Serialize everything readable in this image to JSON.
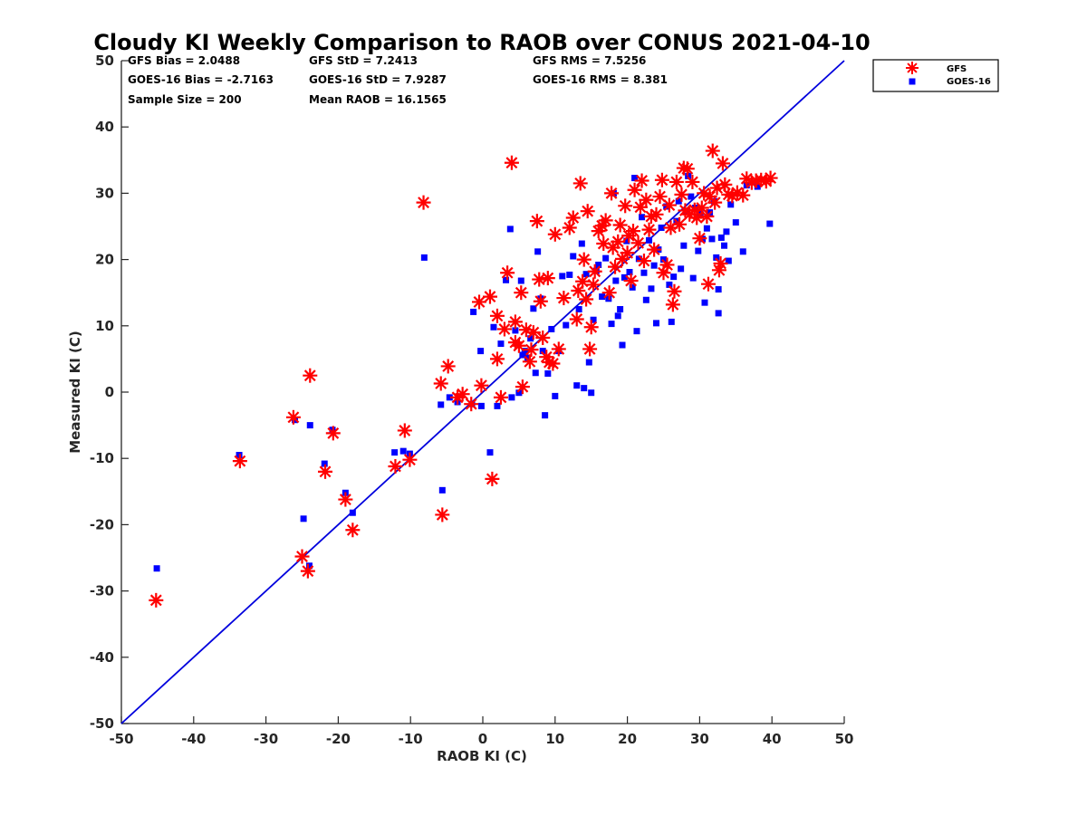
{
  "chart_data": {
    "type": "scatter",
    "title": "Cloudy KI Weekly Comparison to RAOB over CONUS 2021-04-10",
    "xlabel": "RAOB KI (C)",
    "ylabel": "Measured KI (C)",
    "xlim": [
      -50,
      50
    ],
    "ylim": [
      -50,
      50
    ],
    "xticks": [
      -50,
      -40,
      -30,
      -20,
      -10,
      0,
      10,
      20,
      30,
      40,
      50
    ],
    "yticks": [
      -50,
      -40,
      -30,
      -20,
      -10,
      0,
      10,
      20,
      30,
      40,
      50
    ],
    "grid": false,
    "legend_position": "top-right (outside plot)",
    "stats": {
      "gfs_bias": "GFS Bias = 2.0488",
      "gfs_std": "GFS StD = 7.2413",
      "gfs_rms": "GFS RMS = 7.5256",
      "goes_bias": "GOES-16 Bias = -2.7163",
      "goes_std": "GOES-16 StD = 7.9287",
      "goes_rms": "GOES-16 RMS = 8.381",
      "sample_size": "Sample Size = 200",
      "mean_raob": "Mean RAOB = 16.1565"
    },
    "reference_line": {
      "from": [
        -50,
        -50
      ],
      "to": [
        50,
        50
      ],
      "color": "#0000dd"
    },
    "series": [
      {
        "name": "GFS",
        "marker": "asterisk",
        "color": "#ff0000",
        "points": [
          [
            -45.2,
            -31.4
          ],
          [
            -33.6,
            -10.4
          ],
          [
            -26.2,
            -3.8
          ],
          [
            -25,
            -24.8
          ],
          [
            -24.2,
            -27
          ],
          [
            -23.9,
            2.5
          ],
          [
            -21.8,
            -12
          ],
          [
            -20.7,
            -6.2
          ],
          [
            -19,
            -16.2
          ],
          [
            -18,
            -20.8
          ],
          [
            -12.1,
            -11.2
          ],
          [
            -10.8,
            -5.8
          ],
          [
            -10.1,
            -10.2
          ],
          [
            -8.2,
            28.6
          ],
          [
            -5.8,
            1.3
          ],
          [
            -5.6,
            -18.5
          ],
          [
            -4.8,
            3.9
          ],
          [
            -3.5,
            -0.8
          ],
          [
            -2.8,
            -0.3
          ],
          [
            -1.6,
            -1.8
          ],
          [
            -0.5,
            13.6
          ],
          [
            -0.2,
            1
          ],
          [
            1.3,
            -13.1
          ],
          [
            1,
            14.4
          ],
          [
            2,
            11.5
          ],
          [
            2,
            5
          ],
          [
            2.5,
            -0.8
          ],
          [
            3,
            9.5
          ],
          [
            3.4,
            18
          ],
          [
            4,
            34.6
          ],
          [
            4.5,
            10.6
          ],
          [
            4.5,
            7.5
          ],
          [
            5,
            7
          ],
          [
            5.3,
            15
          ],
          [
            5.5,
            0.8
          ],
          [
            6,
            9.4
          ],
          [
            6.5,
            4.6
          ],
          [
            6.7,
            6.4
          ],
          [
            7,
            9
          ],
          [
            7.5,
            25.8
          ],
          [
            7.8,
            17
          ],
          [
            8,
            13.7
          ],
          [
            8.3,
            8.2
          ],
          [
            8.8,
            5.3
          ],
          [
            9,
            17.2
          ],
          [
            9.2,
            4.5
          ],
          [
            9.7,
            4.3
          ],
          [
            10,
            23.8
          ],
          [
            10.5,
            6.5
          ],
          [
            11.2,
            14.2
          ],
          [
            12,
            24.8
          ],
          [
            12.5,
            26.3
          ],
          [
            13,
            11
          ],
          [
            13.2,
            15.3
          ],
          [
            13.5,
            31.5
          ],
          [
            13.8,
            16.7
          ],
          [
            14,
            20
          ],
          [
            14.3,
            14
          ],
          [
            14.5,
            27.3
          ],
          [
            14.8,
            6.5
          ],
          [
            15,
            9.8
          ],
          [
            15.3,
            16.2
          ],
          [
            15.5,
            18.2
          ],
          [
            16,
            24.3
          ],
          [
            16.5,
            25.1
          ],
          [
            16.7,
            22.4
          ],
          [
            17,
            25.9
          ],
          [
            17.5,
            15
          ],
          [
            17.8,
            30
          ],
          [
            18,
            21.8
          ],
          [
            18.3,
            18.9
          ],
          [
            18.7,
            22.7
          ],
          [
            19,
            25.2
          ],
          [
            19.3,
            20.1
          ],
          [
            19.7,
            28.1
          ],
          [
            20,
            21
          ],
          [
            20.2,
            23.6
          ],
          [
            20.5,
            16.8
          ],
          [
            20.8,
            24.3
          ],
          [
            21,
            30.5
          ],
          [
            21.5,
            22.5
          ],
          [
            21.8,
            27.9
          ],
          [
            22,
            31.9
          ],
          [
            22.3,
            19.8
          ],
          [
            22.6,
            29
          ],
          [
            23,
            24.5
          ],
          [
            23.3,
            26.5
          ],
          [
            23.7,
            21.5
          ],
          [
            24,
            26.8
          ],
          [
            24.5,
            29.5
          ],
          [
            24.8,
            32
          ],
          [
            25,
            18
          ],
          [
            25.5,
            19.2
          ],
          [
            25.8,
            28.2
          ],
          [
            26,
            24.8
          ],
          [
            26.3,
            13.2
          ],
          [
            26.5,
            15.2
          ],
          [
            26.8,
            31.7
          ],
          [
            27.2,
            25.3
          ],
          [
            27.5,
            29.8
          ],
          [
            27.8,
            33.8
          ],
          [
            28,
            27.4
          ],
          [
            28.3,
            33.7
          ],
          [
            28.6,
            26.8
          ],
          [
            29,
            31.7
          ],
          [
            29.3,
            27.5
          ],
          [
            29.6,
            26.3
          ],
          [
            30,
            23.2
          ],
          [
            30.3,
            27.8
          ],
          [
            30.6,
            30
          ],
          [
            31,
            26.5
          ],
          [
            31.4,
            29.5
          ],
          [
            31.8,
            36.4
          ],
          [
            32.1,
            28.6
          ],
          [
            32.4,
            30.8
          ],
          [
            32.7,
            18.4
          ],
          [
            32.9,
            19.4
          ],
          [
            33.2,
            34.5
          ],
          [
            33.5,
            31.3
          ],
          [
            34,
            29.8
          ],
          [
            34.5,
            29.6
          ],
          [
            35.2,
            30.1
          ],
          [
            36,
            29.7
          ],
          [
            36.5,
            32.2
          ],
          [
            37.2,
            31.6
          ],
          [
            37.8,
            31.9
          ],
          [
            38.5,
            32
          ],
          [
            39.2,
            31.8
          ],
          [
            39.8,
            32.3
          ],
          [
            31.2,
            16.3
          ]
        ]
      },
      {
        "name": "GOES-16",
        "marker": "square",
        "color": "#0000ff",
        "points": [
          [
            -45.1,
            -26.6
          ],
          [
            -33.7,
            -9.5
          ],
          [
            -26,
            -4.2
          ],
          [
            -24.8,
            -19.1
          ],
          [
            -24,
            -26.2
          ],
          [
            -23.9,
            -5
          ],
          [
            -21.9,
            -10.8
          ],
          [
            -20.8,
            -5.7
          ],
          [
            -19,
            -15.2
          ],
          [
            -18,
            -18.2
          ],
          [
            -12.2,
            -9.1
          ],
          [
            -11,
            -8.9
          ],
          [
            -10.1,
            -9.3
          ],
          [
            -8.1,
            20.3
          ],
          [
            -5.8,
            -1.9
          ],
          [
            -5.6,
            -14.8
          ],
          [
            -4.6,
            -0.8
          ],
          [
            -3.5,
            -1.5
          ],
          [
            -1.5,
            -1.8
          ],
          [
            -1.3,
            12.1
          ],
          [
            -0.3,
            6.2
          ],
          [
            -0.2,
            -2.1
          ],
          [
            1,
            -9.1
          ],
          [
            1.5,
            9.8
          ],
          [
            2,
            -2.1
          ],
          [
            2.5,
            7.3
          ],
          [
            3.2,
            16.9
          ],
          [
            3.8,
            24.6
          ],
          [
            4,
            -0.8
          ],
          [
            4.5,
            9.3
          ],
          [
            5,
            -0.1
          ],
          [
            5.3,
            16.8
          ],
          [
            5.5,
            5.6
          ],
          [
            5.8,
            6.2
          ],
          [
            6.2,
            5.2
          ],
          [
            6.6,
            8.1
          ],
          [
            7,
            12.6
          ],
          [
            7.3,
            2.9
          ],
          [
            7.6,
            21.2
          ],
          [
            8,
            14.1
          ],
          [
            8.3,
            6.2
          ],
          [
            8.6,
            -3.5
          ],
          [
            9,
            2.8
          ],
          [
            9.5,
            9.5
          ],
          [
            10,
            -0.6
          ],
          [
            10.5,
            6.2
          ],
          [
            11,
            17.5
          ],
          [
            11.5,
            10.1
          ],
          [
            12,
            17.7
          ],
          [
            12.5,
            20.5
          ],
          [
            13,
            1
          ],
          [
            13.3,
            12.5
          ],
          [
            13.7,
            22.4
          ],
          [
            14,
            0.6
          ],
          [
            14.3,
            17.8
          ],
          [
            14.7,
            4.5
          ],
          [
            15,
            -0.1
          ],
          [
            15.3,
            10.9
          ],
          [
            15.7,
            18.3
          ],
          [
            16,
            19.2
          ],
          [
            16.5,
            14.4
          ],
          [
            17,
            20.2
          ],
          [
            17.4,
            14.1
          ],
          [
            17.8,
            10.3
          ],
          [
            18.1,
            30
          ],
          [
            18.4,
            16.8
          ],
          [
            18.7,
            11.5
          ],
          [
            19,
            12.5
          ],
          [
            19.3,
            7.1
          ],
          [
            19.6,
            17.3
          ],
          [
            19.9,
            22.8
          ],
          [
            20.3,
            18.1
          ],
          [
            20.7,
            15.8
          ],
          [
            21,
            32.3
          ],
          [
            21.3,
            9.2
          ],
          [
            21.6,
            20.1
          ],
          [
            22,
            26.4
          ],
          [
            22.3,
            18
          ],
          [
            22.6,
            13.9
          ],
          [
            23,
            22.9
          ],
          [
            23.3,
            15.6
          ],
          [
            23.7,
            19.1
          ],
          [
            24,
            10.4
          ],
          [
            24.3,
            21.5
          ],
          [
            24.7,
            24.8
          ],
          [
            25,
            20
          ],
          [
            25.4,
            28
          ],
          [
            25.8,
            16.2
          ],
          [
            26.1,
            10.6
          ],
          [
            26.4,
            17.4
          ],
          [
            26.8,
            25.8
          ],
          [
            27.1,
            28.8
          ],
          [
            27.4,
            18.6
          ],
          [
            27.8,
            22.1
          ],
          [
            28.1,
            27.3
          ],
          [
            28.4,
            32.6
          ],
          [
            28.8,
            29.5
          ],
          [
            29.1,
            17.2
          ],
          [
            29.4,
            27.8
          ],
          [
            29.8,
            21.3
          ],
          [
            30.1,
            26.9
          ],
          [
            30.4,
            23.1
          ],
          [
            30.7,
            13.5
          ],
          [
            31,
            24.7
          ],
          [
            31.4,
            27.1
          ],
          [
            31.7,
            23.1
          ],
          [
            32,
            28.8
          ],
          [
            32.3,
            20.3
          ],
          [
            32.6,
            15.5
          ],
          [
            32.6,
            11.9
          ],
          [
            33,
            23.3
          ],
          [
            33.4,
            22.1
          ],
          [
            33.7,
            24.2
          ],
          [
            34,
            19.8
          ],
          [
            34.3,
            28.3
          ],
          [
            35,
            25.6
          ],
          [
            36,
            21.2
          ],
          [
            36.5,
            31.2
          ],
          [
            38,
            31
          ],
          [
            39.7,
            25.4
          ]
        ]
      }
    ]
  }
}
